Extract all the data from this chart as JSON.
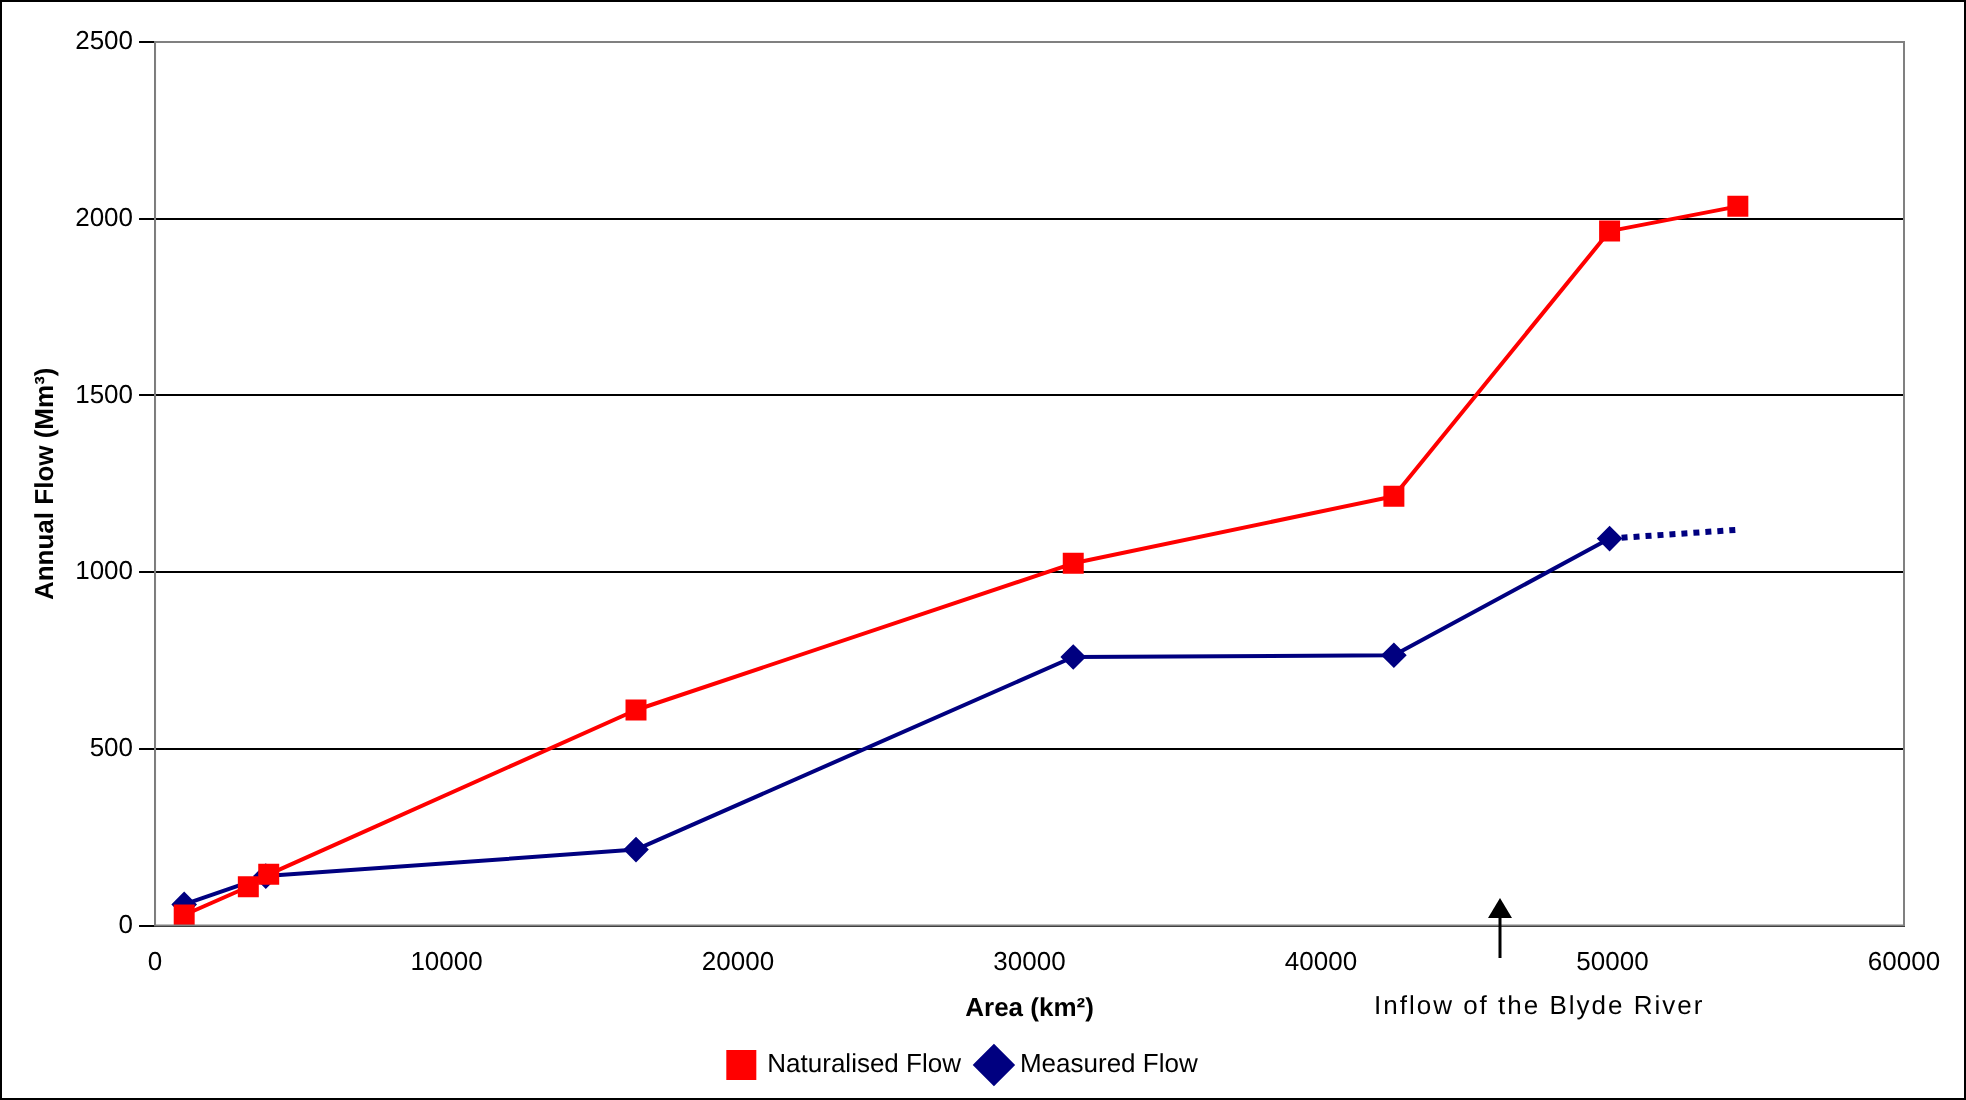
{
  "chart_data": {
    "type": "line",
    "xlabel": "Area (km²)",
    "ylabel": "Annual Flow (Mm³)",
    "xlim": [
      0,
      60000
    ],
    "xticks": [
      0,
      10000,
      20000,
      30000,
      40000,
      50000,
      60000
    ],
    "ylim": [
      0,
      2500
    ],
    "yticks": [
      0,
      500,
      1000,
      1500,
      2000,
      2500
    ],
    "grid": "y",
    "legend": "bottom",
    "series": [
      {
        "name": "Measured Flow",
        "color": "#000080",
        "marker": "diamond",
        "line_style": "solid",
        "x": [
          1000,
          3800,
          16500,
          31500,
          42500,
          49900
        ],
        "values": [
          60,
          140,
          215,
          760,
          765,
          1095
        ]
      },
      {
        "name": "Naturalised Flow",
        "color": "#ff0000",
        "marker": "square",
        "line_style": "solid",
        "x": [
          1000,
          3200,
          3900,
          16500,
          31500,
          42500,
          49900,
          54300
        ],
        "values": [
          30,
          110,
          145,
          610,
          1025,
          1215,
          1965,
          2035
        ]
      },
      {
        "color": "#000080",
        "marker": "none",
        "line_style": "dotted",
        "x": [
          49900,
          54300
        ],
        "values": [
          1095,
          1120
        ]
      }
    ],
    "annotations": [
      "Inflow of the Blyde River"
    ]
  }
}
